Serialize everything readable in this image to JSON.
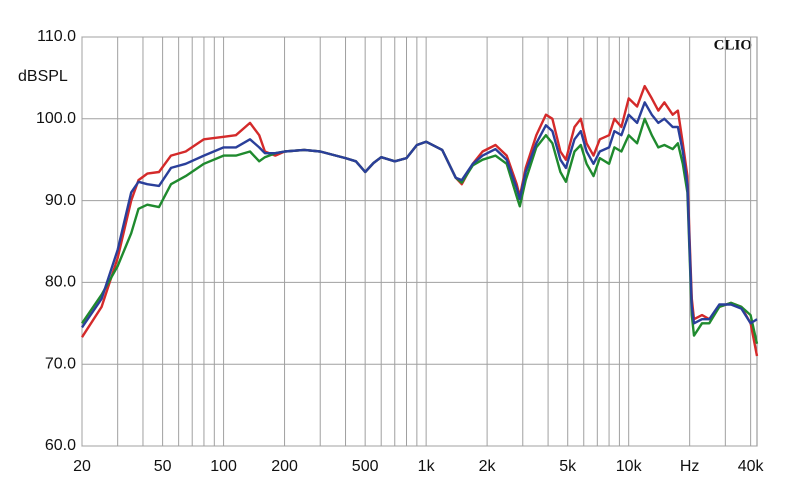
{
  "chart_data": {
    "type": "line",
    "y_label": "dBSPL",
    "brand": "CLIO",
    "log_x": true,
    "grid": true,
    "xlim": [
      20,
      43000
    ],
    "ylim": [
      60,
      110
    ],
    "yticks": [
      {
        "value": 60,
        "label": "60.0"
      },
      {
        "value": 70,
        "label": "70.0"
      },
      {
        "value": 80,
        "label": "80.0"
      },
      {
        "value": 90,
        "label": "90.0"
      },
      {
        "value": 100,
        "label": "100.0"
      },
      {
        "value": 110,
        "label": "110.0"
      }
    ],
    "xticks": [
      20,
      50,
      100,
      200,
      500,
      {
        "value": 1000,
        "label": "1k"
      },
      {
        "value": 2000,
        "label": "2k"
      },
      {
        "value": 5000,
        "label": "5k"
      },
      {
        "value": 10000,
        "label": "10k"
      },
      {
        "value": 20000,
        "label": "Hz"
      },
      {
        "value": 40000,
        "label": "40k"
      }
    ],
    "minor_xticks": [
      30,
      40,
      60,
      70,
      80,
      90,
      300,
      400,
      600,
      700,
      800,
      900,
      3000,
      4000,
      6000,
      7000,
      8000,
      9000,
      30000
    ],
    "x": [
      20,
      25,
      30,
      35,
      38,
      42,
      48,
      55,
      65,
      80,
      100,
      115,
      135,
      150,
      160,
      180,
      200,
      250,
      300,
      400,
      450,
      500,
      550,
      600,
      700,
      800,
      900,
      1000,
      1200,
      1400,
      1500,
      1700,
      1900,
      2200,
      2500,
      2800,
      2900,
      3100,
      3500,
      3900,
      4200,
      4600,
      4900,
      5400,
      5800,
      6200,
      6700,
      7200,
      8000,
      8500,
      9200,
      10000,
      11000,
      12000,
      13000,
      14000,
      15000,
      16500,
      17500,
      18500,
      19500,
      20000,
      20500,
      21000,
      23000,
      25000,
      28000,
      32000,
      36000,
      40000,
      43000
    ],
    "series": [
      {
        "color": "#d42a2a",
        "values": [
          73.3,
          77,
          83,
          90,
          92.5,
          93.3,
          93.5,
          95.5,
          96,
          97.5,
          97.8,
          98,
          99.5,
          98,
          96,
          95.5,
          96,
          96.2,
          96,
          95.2,
          94.8,
          93.5,
          94.6,
          95.3,
          94.8,
          95.2,
          96.8,
          97.2,
          96.2,
          92.8,
          92,
          94.5,
          96,
          96.8,
          95.5,
          92,
          90.5,
          94,
          98,
          100.5,
          100,
          96,
          95,
          99,
          100,
          97,
          95.5,
          97.5,
          98,
          100,
          99,
          102.5,
          101.5,
          104,
          102.5,
          101,
          102,
          100.5,
          101,
          97,
          93,
          85,
          78,
          75.5,
          76,
          75.5,
          77,
          77.5,
          77,
          75,
          71
        ]
      },
      {
        "color": "#1f8a2e",
        "values": [
          75,
          78.5,
          82,
          86,
          89,
          89.5,
          89.2,
          92,
          93,
          94.5,
          95.5,
          95.5,
          96,
          94.8,
          95.3,
          95.8,
          96,
          96.2,
          96,
          95.2,
          94.8,
          93.5,
          94.6,
          95.3,
          94.8,
          95.2,
          96.8,
          97.2,
          96.2,
          92.8,
          92.2,
          94.3,
          95,
          95.5,
          94.5,
          90.5,
          89.3,
          92.5,
          96.5,
          98,
          97,
          93.5,
          92.3,
          96,
          96.8,
          94.5,
          93,
          95.2,
          94.5,
          96.5,
          96,
          98,
          97,
          100,
          98,
          96.5,
          96.8,
          96.3,
          97,
          94.5,
          91,
          83,
          76,
          73.5,
          75,
          75,
          77,
          77.5,
          77,
          76,
          72.5
        ]
      },
      {
        "color": "#2a3f9a",
        "values": [
          74.5,
          78,
          84,
          91,
          92.3,
          92,
          91.8,
          94,
          94.5,
          95.5,
          96.5,
          96.5,
          97.5,
          96.5,
          95.8,
          95.8,
          96,
          96.2,
          96,
          95.2,
          94.8,
          93.5,
          94.6,
          95.3,
          94.8,
          95.2,
          96.8,
          97.2,
          96.2,
          92.8,
          92.5,
          94.5,
          95.5,
          96.3,
          95,
          91.5,
          90.2,
          93.5,
          97,
          99.2,
          98.5,
          95,
          94,
          97.5,
          98.5,
          96,
          94.5,
          96,
          96.5,
          98.5,
          98,
          100.5,
          99.5,
          102,
          100.5,
          99.5,
          100,
          99,
          99,
          96,
          92,
          84,
          77,
          75,
          75.5,
          75.5,
          77.3,
          77.3,
          76.8,
          75,
          75.5
        ]
      }
    ]
  }
}
